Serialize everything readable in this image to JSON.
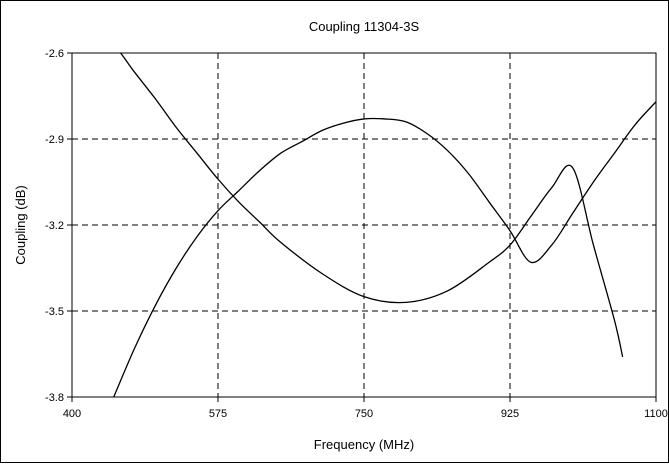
{
  "chart_data": {
    "type": "line",
    "title": "Coupling 11304-3S",
    "xlabel": "Frequency (MHz)",
    "ylabel": "Coupling (dB)",
    "xlim": [
      400,
      1100
    ],
    "ylim": [
      -3.8,
      -2.6
    ],
    "xticks": [
      400,
      575,
      750,
      925,
      1100
    ],
    "xtick_labels": [
      "400",
      "575",
      "750",
      "925",
      "1100"
    ],
    "yticks": [
      -2.6,
      -2.9,
      -3.2,
      -3.5,
      -3.8
    ],
    "ytick_labels": [
      "-2.6",
      "-2.9",
      "-3.2",
      "-3.5",
      "-3.8"
    ],
    "grid": "dashed, at every tick",
    "legend": "none",
    "line_color": "#000000",
    "series": [
      {
        "x": [
          400,
          450,
          475,
          500,
          525,
          550,
          575,
          600,
          625,
          650,
          700,
          750,
          800,
          850,
          900,
          925,
          950,
          975,
          1000,
          1025,
          1050,
          1060
        ],
        "values": [
          -2.41,
          -2.57,
          -2.667,
          -2.76,
          -2.86,
          -2.95,
          -3.04,
          -3.12,
          -3.19,
          -3.26,
          -3.37,
          -3.45,
          -3.47,
          -3.43,
          -3.33,
          -3.27,
          -3.17,
          -3.07,
          -3.0,
          -3.27,
          -3.53,
          -3.66
        ]
      },
      {
        "x": [
          450,
          475,
          500,
          525,
          550,
          575,
          600,
          625,
          650,
          675,
          700,
          725,
          750,
          775,
          800,
          825,
          850,
          875,
          900,
          925,
          950,
          975,
          1000,
          1025,
          1050,
          1075,
          1100
        ],
        "values": [
          -3.8,
          -3.63,
          -3.48,
          -3.35,
          -3.24,
          -3.15,
          -3.08,
          -3.01,
          -2.95,
          -2.91,
          -2.87,
          -2.845,
          -2.83,
          -2.83,
          -2.84,
          -2.88,
          -2.94,
          -3.02,
          -3.12,
          -3.22,
          -3.33,
          -3.27,
          -3.16,
          -3.05,
          -2.95,
          -2.85,
          -2.77
        ]
      }
    ]
  }
}
